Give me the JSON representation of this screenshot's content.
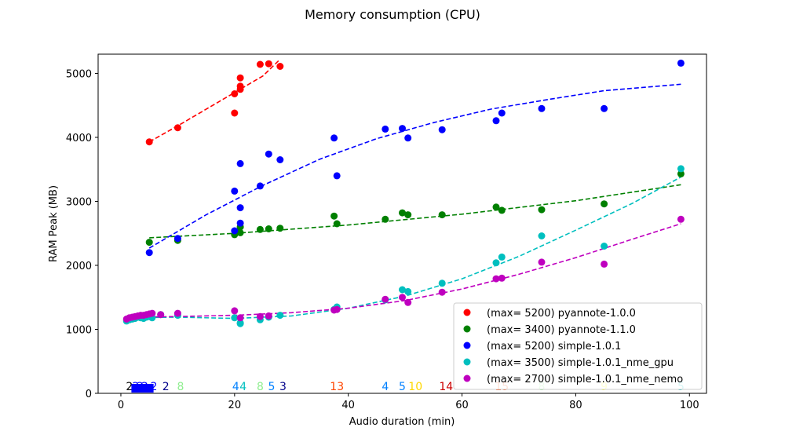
{
  "chart_data": {
    "type": "scatter",
    "title": "Memory consumption (CPU)",
    "xlabel": "Audio duration (min)",
    "ylabel": "RAM Peak (MB)",
    "xlim": [
      -4,
      103
    ],
    "ylim": [
      0,
      5300
    ],
    "xticks": [
      0,
      20,
      40,
      60,
      80,
      100
    ],
    "yticks": [
      0,
      1000,
      2000,
      3000,
      4000,
      5000
    ],
    "grid": false,
    "legend_position": "lower-right",
    "series": [
      {
        "name": "(max= 5200) pyannote-1.0.0",
        "color": "#ff0000",
        "points": [
          [
            5,
            3930
          ],
          [
            10,
            4150
          ],
          [
            20,
            4380
          ],
          [
            20,
            4680
          ],
          [
            21,
            4750
          ],
          [
            21,
            4800
          ],
          [
            21,
            4930
          ],
          [
            24.5,
            5140
          ],
          [
            26,
            5150
          ],
          [
            28,
            5110
          ]
        ],
        "fit": [
          [
            5,
            3930
          ],
          [
            10,
            4180
          ],
          [
            15,
            4440
          ],
          [
            20,
            4700
          ],
          [
            25,
            4960
          ],
          [
            28,
            5220
          ]
        ]
      },
      {
        "name": "(max= 3400) pyannote-1.1.0",
        "color": "#008000",
        "points": [
          [
            5,
            2360
          ],
          [
            10,
            2390
          ],
          [
            20,
            2480
          ],
          [
            20.5,
            2530
          ],
          [
            21,
            2510
          ],
          [
            21,
            2600
          ],
          [
            24.5,
            2560
          ],
          [
            26,
            2570
          ],
          [
            28,
            2580
          ],
          [
            37.5,
            2770
          ],
          [
            38,
            2650
          ],
          [
            46.5,
            2720
          ],
          [
            49.5,
            2820
          ],
          [
            50.5,
            2790
          ],
          [
            56.5,
            2790
          ],
          [
            66,
            2910
          ],
          [
            67,
            2860
          ],
          [
            74,
            2870
          ],
          [
            85,
            2960
          ],
          [
            98.5,
            3430
          ]
        ],
        "fit": [
          [
            5,
            2430
          ],
          [
            20,
            2500
          ],
          [
            40,
            2630
          ],
          [
            60,
            2800
          ],
          [
            80,
            3010
          ],
          [
            98.5,
            3260
          ]
        ]
      },
      {
        "name": "(max= 5200) simple-1.0.1",
        "color": "#0000ff",
        "points": [
          [
            5,
            2200
          ],
          [
            10,
            2420
          ],
          [
            20,
            3160
          ],
          [
            20,
            2540
          ],
          [
            21,
            3590
          ],
          [
            21,
            2900
          ],
          [
            21,
            2660
          ],
          [
            24.5,
            3240
          ],
          [
            26,
            3740
          ],
          [
            28,
            3650
          ],
          [
            37.5,
            3990
          ],
          [
            38,
            3400
          ],
          [
            46.5,
            4130
          ],
          [
            49.5,
            4140
          ],
          [
            50.5,
            3990
          ],
          [
            56.5,
            4120
          ],
          [
            66,
            4260
          ],
          [
            67,
            4380
          ],
          [
            74,
            4450
          ],
          [
            85,
            4450
          ],
          [
            98.5,
            5160
          ]
        ],
        "fit": [
          [
            5,
            2270
          ],
          [
            15,
            2790
          ],
          [
            25,
            3250
          ],
          [
            35,
            3660
          ],
          [
            45,
            3980
          ],
          [
            55,
            4230
          ],
          [
            65,
            4440
          ],
          [
            75,
            4590
          ],
          [
            85,
            4730
          ],
          [
            98.5,
            4830
          ]
        ]
      },
      {
        "name": "(max= 3500) simple-1.0.1_nme_gpu",
        "color": "#00bfbf",
        "points": [
          [
            1,
            1130
          ],
          [
            1.5,
            1150
          ],
          [
            2,
            1160
          ],
          [
            2.5,
            1170
          ],
          [
            3,
            1190
          ],
          [
            3.5,
            1180
          ],
          [
            4,
            1170
          ],
          [
            4.5,
            1190
          ],
          [
            5,
            1200
          ],
          [
            5.5,
            1180
          ],
          [
            7,
            1230
          ],
          [
            10,
            1220
          ],
          [
            20,
            1180
          ],
          [
            21,
            1100
          ],
          [
            21,
            1090
          ],
          [
            24.5,
            1150
          ],
          [
            26,
            1190
          ],
          [
            28,
            1220
          ],
          [
            37.5,
            1310
          ],
          [
            38,
            1350
          ],
          [
            46.5,
            1460
          ],
          [
            49.5,
            1620
          ],
          [
            50.5,
            1590
          ],
          [
            56.5,
            1720
          ],
          [
            66,
            2040
          ],
          [
            67,
            2130
          ],
          [
            74,
            2460
          ],
          [
            85,
            2300
          ],
          [
            98.5,
            3510
          ]
        ],
        "fit": [
          [
            1,
            1180
          ],
          [
            10,
            1190
          ],
          [
            20,
            1170
          ],
          [
            30,
            1210
          ],
          [
            40,
            1330
          ],
          [
            50,
            1520
          ],
          [
            60,
            1790
          ],
          [
            70,
            2140
          ],
          [
            80,
            2550
          ],
          [
            90,
            2970
          ],
          [
            98.5,
            3380
          ]
        ]
      },
      {
        "name": "(max= 2700) simple-1.0.1_nme_nemo",
        "color": "#bf00bf",
        "points": [
          [
            1,
            1160
          ],
          [
            1.5,
            1180
          ],
          [
            2,
            1190
          ],
          [
            2.5,
            1200
          ],
          [
            3,
            1210
          ],
          [
            3.5,
            1220
          ],
          [
            4,
            1220
          ],
          [
            4.5,
            1230
          ],
          [
            5,
            1240
          ],
          [
            5.5,
            1250
          ],
          [
            7,
            1230
          ],
          [
            10,
            1250
          ],
          [
            20,
            1290
          ],
          [
            21,
            1180
          ],
          [
            24.5,
            1200
          ],
          [
            26,
            1210
          ],
          [
            37.5,
            1300
          ],
          [
            38,
            1310
          ],
          [
            46.5,
            1470
          ],
          [
            49.5,
            1500
          ],
          [
            50.5,
            1420
          ],
          [
            56.5,
            1580
          ],
          [
            66,
            1790
          ],
          [
            67,
            1800
          ],
          [
            74,
            2050
          ],
          [
            85,
            2020
          ],
          [
            98.5,
            2720
          ]
        ],
        "fit": [
          [
            1,
            1190
          ],
          [
            10,
            1200
          ],
          [
            20,
            1220
          ],
          [
            30,
            1260
          ],
          [
            40,
            1330
          ],
          [
            50,
            1450
          ],
          [
            60,
            1630
          ],
          [
            70,
            1860
          ],
          [
            80,
            2120
          ],
          [
            90,
            2410
          ],
          [
            98.5,
            2650
          ]
        ]
      }
    ],
    "annotations": [
      {
        "text": "2",
        "x": 1.5,
        "color": "#000000"
      },
      {
        "text": "2",
        "x": 2.6,
        "color": "#0000ff"
      },
      {
        "text": "2",
        "x": 3.4,
        "color": "#0000ff"
      },
      {
        "text": "2",
        "x": 4.2,
        "color": "#0000ff"
      },
      {
        "text": "2",
        "x": 5.8,
        "color": "#0000ff"
      },
      {
        "text": "8",
        "x": 10.5,
        "color": "#90ee90"
      },
      {
        "text": "2",
        "x": 7.9,
        "color": "#00008b"
      },
      {
        "text": "4",
        "x": 20.2,
        "color": "#0080ff"
      },
      {
        "text": "4",
        "x": 21.5,
        "color": "#00bfbf"
      },
      {
        "text": "8",
        "x": 24.5,
        "color": "#90ee90"
      },
      {
        "text": "5",
        "x": 26.5,
        "color": "#0080ff"
      },
      {
        "text": "3",
        "x": 28.5,
        "color": "#00008b"
      },
      {
        "text": "13",
        "x": 38,
        "color": "#ff4500"
      },
      {
        "text": "4",
        "x": 46.5,
        "color": "#0080ff"
      },
      {
        "text": "5",
        "x": 49.5,
        "color": "#0080ff"
      },
      {
        "text": "10",
        "x": 51.8,
        "color": "#ffd700"
      },
      {
        "text": "14",
        "x": 57.2,
        "color": "#cc0000"
      },
      {
        "text": "15",
        "x": 67,
        "color": "#ff4500"
      },
      {
        "text": "8",
        "x": 74,
        "color": "#90ee90"
      },
      {
        "text": "9",
        "x": 85,
        "color": "#ffff00"
      },
      {
        "text": "5",
        "x": 98.5,
        "color": "#00bfbf"
      }
    ]
  }
}
